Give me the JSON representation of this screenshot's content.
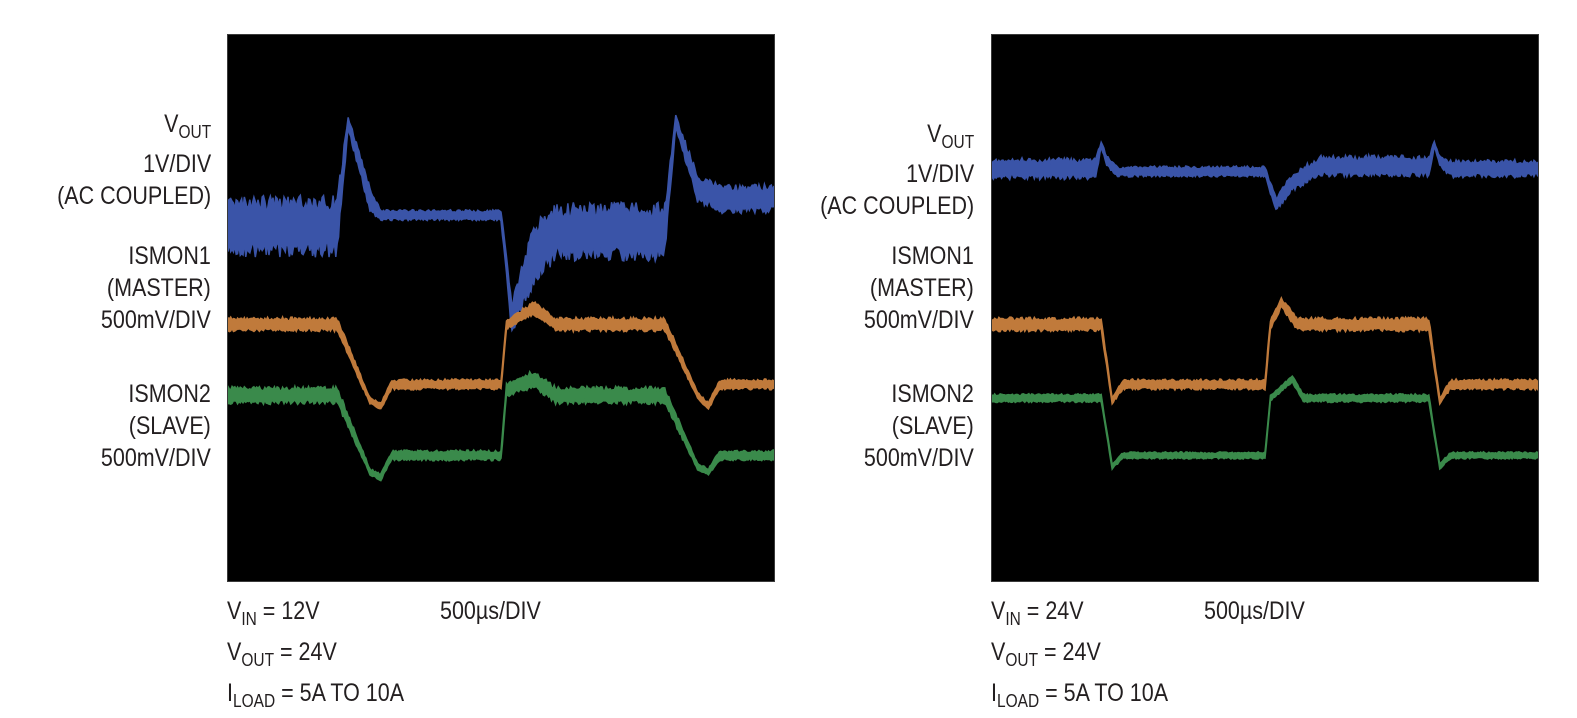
{
  "chart_data": [
    {
      "type": "line",
      "panel": "left",
      "channels": [
        {
          "name_main": "V",
          "name_sub": "OUT",
          "lines": [
            "1V/DIV",
            "(AC COUPLED)"
          ],
          "color": "#3a54a8"
        },
        {
          "name_main": "ISMON1",
          "name_sub": "",
          "lines": [
            "(MASTER)",
            "500mV/DIV"
          ],
          "color": "#c07a3b"
        },
        {
          "name_main": "ISMON2",
          "name_sub": "",
          "lines": [
            "(SLAVE)",
            "500mV/DIV"
          ],
          "color": "#3a8a4b"
        }
      ],
      "timebase": "500µs/DIV",
      "conditions": [
        {
          "main": "V",
          "sub": "IN",
          "rest": " = 12V"
        },
        {
          "main": "V",
          "sub": "OUT",
          "rest": " = 24V"
        },
        {
          "main": "I",
          "sub": "LOAD",
          "rest": " = 5A TO 10A"
        }
      ],
      "traces": {
        "vout": {
          "x": [
            0,
            0.2,
            0.22,
            0.26,
            0.28,
            0.3,
            0.5,
            0.52,
            0.56,
            0.6,
            0.8,
            0.82,
            0.86,
            0.9,
            1.0
          ],
          "y": [
            0.35,
            0.35,
            0.16,
            0.3,
            0.33,
            0.33,
            0.33,
            0.52,
            0.4,
            0.36,
            0.36,
            0.16,
            0.28,
            0.3,
            0.3
          ],
          "band": [
            0.085,
            0.085,
            0.02,
            0.04,
            0.015,
            0.015,
            0.015,
            0.05,
            0.09,
            0.08,
            0.08,
            0.02,
            0.04,
            0.04,
            0.04
          ]
        },
        "ismon1": {
          "x": [
            0,
            0.2,
            0.26,
            0.28,
            0.3,
            0.5,
            0.51,
            0.56,
            0.6,
            0.8,
            0.86,
            0.88,
            0.9,
            1.0
          ],
          "y": [
            0.53,
            0.53,
            0.67,
            0.68,
            0.64,
            0.64,
            0.53,
            0.5,
            0.53,
            0.53,
            0.66,
            0.68,
            0.64,
            0.64
          ],
          "band": [
            0.02,
            0.02,
            0.01,
            0.01,
            0.015,
            0.015,
            0.015,
            0.02,
            0.02,
            0.02,
            0.01,
            0.01,
            0.015,
            0.015
          ]
        },
        "ismon2": {
          "x": [
            0,
            0.2,
            0.26,
            0.28,
            0.3,
            0.5,
            0.51,
            0.56,
            0.6,
            0.8,
            0.86,
            0.88,
            0.9,
            1.0
          ],
          "y": [
            0.66,
            0.66,
            0.8,
            0.81,
            0.77,
            0.77,
            0.65,
            0.63,
            0.66,
            0.66,
            0.79,
            0.8,
            0.77,
            0.77
          ],
          "band": [
            0.025,
            0.025,
            0.01,
            0.01,
            0.015,
            0.015,
            0.02,
            0.025,
            0.025,
            0.025,
            0.01,
            0.01,
            0.015,
            0.015
          ]
        }
      }
    },
    {
      "type": "line",
      "panel": "right",
      "channels": [
        {
          "name_main": "V",
          "name_sub": "OUT",
          "lines": [
            "1V/DIV",
            "(AC COUPLED)"
          ],
          "color": "#3a54a8"
        },
        {
          "name_main": "ISMON1",
          "name_sub": "",
          "lines": [
            "(MASTER)",
            "500mV/DIV"
          ],
          "color": "#c07a3b"
        },
        {
          "name_main": "ISMON2",
          "name_sub": "",
          "lines": [
            "(SLAVE)",
            "500mV/DIV"
          ],
          "color": "#3a8a4b"
        }
      ],
      "timebase": "500µs/DIV",
      "conditions": [
        {
          "main": "V",
          "sub": "IN",
          "rest": " = 24V"
        },
        {
          "main": "V",
          "sub": "OUT",
          "rest": " = 24V"
        },
        {
          "main": "I",
          "sub": "LOAD",
          "rest": " = 5A TO 10A"
        }
      ],
      "traces": {
        "vout": {
          "x": [
            0,
            0.19,
            0.2,
            0.21,
            0.23,
            0.5,
            0.52,
            0.55,
            0.6,
            0.8,
            0.81,
            0.82,
            0.84,
            1.0
          ],
          "y": [
            0.245,
            0.245,
            0.2,
            0.23,
            0.25,
            0.25,
            0.31,
            0.27,
            0.24,
            0.24,
            0.2,
            0.23,
            0.245,
            0.245
          ],
          "band": [
            0.03,
            0.03,
            0.01,
            0.015,
            0.015,
            0.015,
            0.02,
            0.025,
            0.03,
            0.03,
            0.01,
            0.015,
            0.025,
            0.025
          ]
        },
        "ismon1": {
          "x": [
            0,
            0.2,
            0.22,
            0.24,
            0.5,
            0.51,
            0.53,
            0.56,
            0.8,
            0.82,
            0.84,
            1.0
          ],
          "y": [
            0.53,
            0.53,
            0.67,
            0.64,
            0.64,
            0.53,
            0.49,
            0.53,
            0.53,
            0.67,
            0.64,
            0.64
          ],
          "band": [
            0.02,
            0.02,
            0.01,
            0.015,
            0.015,
            0.015,
            0.015,
            0.02,
            0.02,
            0.01,
            0.015,
            0.015
          ]
        },
        "ismon2": {
          "x": [
            0,
            0.2,
            0.22,
            0.24,
            0.5,
            0.51,
            0.55,
            0.57,
            0.8,
            0.82,
            0.84,
            1.0
          ],
          "y": [
            0.665,
            0.665,
            0.79,
            0.77,
            0.77,
            0.665,
            0.63,
            0.665,
            0.665,
            0.79,
            0.77,
            0.77
          ],
          "band": [
            0.012,
            0.012,
            0.008,
            0.01,
            0.01,
            0.01,
            0.01,
            0.012,
            0.012,
            0.008,
            0.01,
            0.01
          ]
        }
      }
    }
  ]
}
